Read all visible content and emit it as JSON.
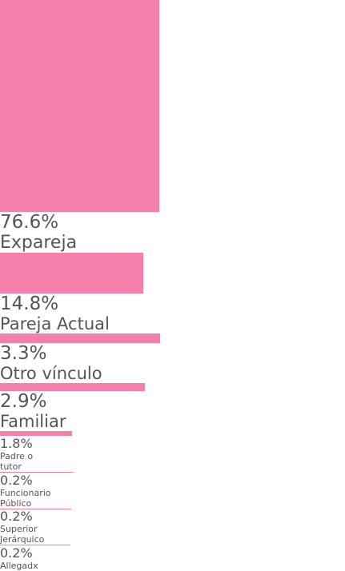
{
  "chart_data": {
    "type": "bar",
    "categories": [
      "Expareja",
      "Pareja Actual",
      "Otro vínculo",
      "Familiar",
      "Padre o tutor",
      "Funcionario Público",
      "Superior Jerárquico",
      "Allegadx"
    ],
    "values": [
      76.6,
      14.8,
      3.3,
      2.9,
      1.8,
      0.2,
      0.2,
      0.2
    ],
    "value_labels": [
      "76.6%",
      "14.8%",
      "3.3%",
      "2.9%",
      "1.8%",
      "0.2%",
      "0.2%",
      "0.2%"
    ],
    "color": "#f47fab"
  }
}
